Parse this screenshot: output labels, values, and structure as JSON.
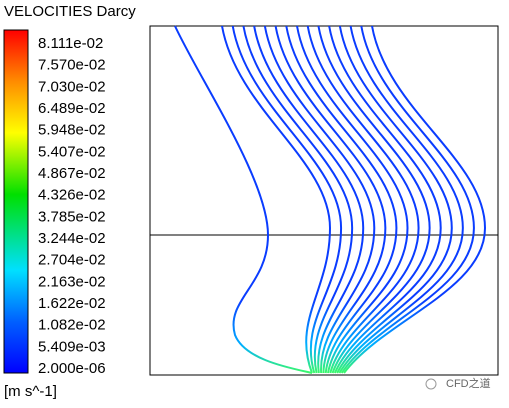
{
  "legend": {
    "title": "VELOCITIES Darcy",
    "labels": [
      "8.111e-02",
      "7.570e-02",
      "7.030e-02",
      "6.489e-02",
      "5.948e-02",
      "5.407e-02",
      "4.867e-02",
      "4.326e-02",
      "3.785e-02",
      "3.244e-02",
      "2.704e-02",
      "2.163e-02",
      "1.622e-02",
      "1.082e-02",
      "5.409e-03",
      "2.000e-06"
    ],
    "unit": "[m s^-1]"
  },
  "watermark": "CFD之道"
}
